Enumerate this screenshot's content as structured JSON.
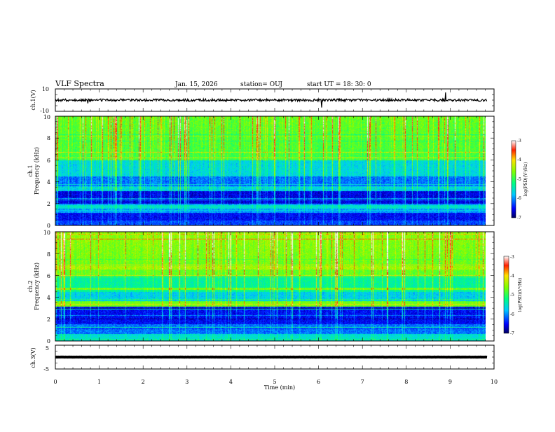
{
  "header": {
    "title": "VLF Spectra",
    "date": "Jan. 15, 2026",
    "station": "station= OUJ",
    "start": "start  UT  =   18: 30: 0"
  },
  "chart_data": {
    "type": "heatmap",
    "xaxis": {
      "label": "Time (min)",
      "range": [
        0,
        10
      ],
      "ticks": [
        "0",
        "1",
        "2",
        "3",
        "4",
        "5",
        "6",
        "7",
        "8",
        "9",
        "10"
      ],
      "data_end": 9.85
    },
    "panels": [
      {
        "kind": "waveform",
        "ylabel": "ch.1(V)",
        "ylim": [
          -10,
          10
        ],
        "yticks": [
          "10",
          "-10"
        ],
        "baseline": 0
      },
      {
        "kind": "spectrogram",
        "ylabel_top": "ch.1",
        "ylabel": "Frequency (kHz)",
        "ylim": [
          0,
          10
        ],
        "yticks": [
          "0",
          "2",
          "4",
          "6",
          "8",
          "10"
        ],
        "colorbar": {
          "label": "log(PSD)(V²/Hz)",
          "range": [
            -7,
            -3
          ],
          "ticks": [
            "-3",
            "-4",
            "-5",
            "-6",
            "-7"
          ]
        }
      },
      {
        "kind": "spectrogram",
        "ylabel_top": "ch.2",
        "ylabel": "Frequency (kHz)",
        "ylim": [
          0,
          10
        ],
        "yticks": [
          "0",
          "2",
          "4",
          "6",
          "8",
          "10"
        ],
        "colorbar": {
          "label": "log(PSD)(V²/Hz)",
          "range": [
            -7,
            -3
          ],
          "ticks": [
            "-3",
            "-4",
            "-5",
            "-6",
            "-7"
          ]
        }
      },
      {
        "kind": "waveform",
        "ylabel": "ch.3(V)",
        "ylim": [
          -5,
          5
        ],
        "yticks": [
          "5",
          "-5"
        ],
        "baseline": 0
      }
    ]
  },
  "colors": {
    "axis": "#000000",
    "background": "#ffffff"
  }
}
